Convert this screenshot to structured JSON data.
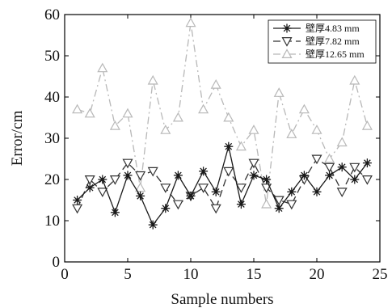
{
  "chart_data": {
    "type": "line",
    "xlabel": "Sample numbers",
    "ylabel": "Error/cm",
    "xlim": [
      0,
      25
    ],
    "ylim": [
      0,
      60
    ],
    "xticks": [
      0,
      5,
      10,
      15,
      20,
      25
    ],
    "yticks": [
      0,
      10,
      20,
      30,
      40,
      50,
      60
    ],
    "grid": false,
    "legend_position": "top-right",
    "x": [
      1,
      2,
      3,
      4,
      5,
      6,
      7,
      8,
      9,
      10,
      11,
      12,
      13,
      14,
      15,
      16,
      17,
      18,
      19,
      20,
      21,
      22,
      23,
      24
    ],
    "series": [
      {
        "name": "壁厚4.83 mm",
        "color": "#1a1a1a",
        "line_style": "solid",
        "marker": "star",
        "values": [
          15,
          18,
          20,
          12,
          21,
          16,
          9,
          13,
          21,
          16,
          22,
          17,
          28,
          14,
          21,
          20,
          13,
          17,
          21,
          17,
          21,
          23,
          20,
          24
        ]
      },
      {
        "name": "壁厚7.82 mm",
        "color": "#333333",
        "line_style": "dash",
        "marker": "triangle-down",
        "values": [
          13,
          20,
          17,
          20,
          24,
          21,
          22,
          18,
          14,
          16,
          18,
          13,
          22,
          18,
          24,
          18,
          15,
          14,
          20,
          25,
          23,
          17,
          23,
          20
        ]
      },
      {
        "name": "壁厚12.65 mm",
        "color": "#b8b8b8",
        "line_style": "dashdot",
        "marker": "triangle-up",
        "values": [
          37,
          36,
          47,
          33,
          36,
          18,
          44,
          32,
          35,
          58,
          37,
          43,
          35,
          28,
          32,
          14,
          41,
          31,
          37,
          32,
          25,
          29,
          44,
          33
        ]
      }
    ]
  }
}
